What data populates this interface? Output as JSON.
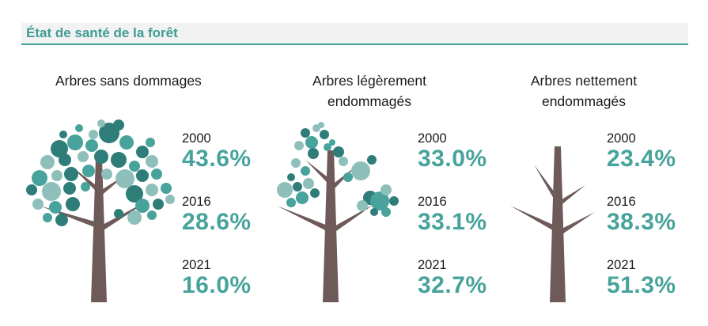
{
  "header": {
    "title": "État de santé de la forêt"
  },
  "colors": {
    "accent": "#47a39b",
    "trunk": "#6e5a58",
    "leaf_dark": "#2e7d78",
    "leaf_mid": "#47a39b",
    "leaf_light": "#8ebfbb"
  },
  "chart_data": {
    "type": "table",
    "categories": [
      "Arbres sans dommages",
      "Arbres légèrement endommagés",
      "Arbres nettement endommagés"
    ],
    "columns": [
      {
        "title_lines": [
          "Arbres sans dommages"
        ],
        "icon": "full-leaf-tree-icon",
        "entries": [
          {
            "year": "2000",
            "value": 43.6,
            "label": "43.6%"
          },
          {
            "year": "2016",
            "value": 28.6,
            "label": "28.6%"
          },
          {
            "year": "2021",
            "value": 16.0,
            "label": "16.0%"
          }
        ]
      },
      {
        "title_lines": [
          "Arbres légèrement",
          "endommagés"
        ],
        "icon": "sparse-leaf-tree-icon",
        "entries": [
          {
            "year": "2000",
            "value": 33.0,
            "label": "33.0%"
          },
          {
            "year": "2016",
            "value": 33.1,
            "label": "33.1%"
          },
          {
            "year": "2021",
            "value": 32.7,
            "label": "32.7%"
          }
        ]
      },
      {
        "title_lines": [
          "Arbres nettement",
          "endommagés"
        ],
        "icon": "bare-tree-icon",
        "entries": [
          {
            "year": "2000",
            "value": 23.4,
            "label": "23.4%"
          },
          {
            "year": "2016",
            "value": 38.3,
            "label": "38.3%"
          },
          {
            "year": "2021",
            "value": 51.3,
            "label": "51.3%"
          }
        ]
      }
    ]
  }
}
